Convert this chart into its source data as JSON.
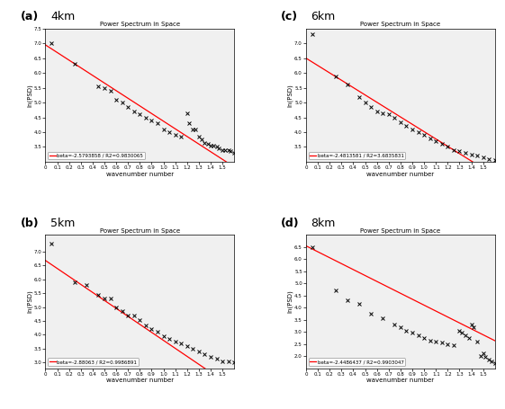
{
  "title": "Power Spectrum in Space",
  "xlabel": "wavenumber number",
  "ylabel": "ln(PSD)",
  "subplots": [
    {
      "label": "(a)",
      "alt": "4km",
      "beta": -2.5793858,
      "r2": 0.9830065,
      "legend_text": "beta=-2.5793858 / R2=0.9830065",
      "ylim": [
        3.0,
        7.5
      ],
      "xlim": [
        0.0,
        1.6
      ],
      "yticks": [
        3.5,
        4.0,
        4.5,
        5.0,
        5.5,
        6.0,
        6.5,
        7.0,
        7.5
      ],
      "xticks": [
        0.0,
        0.1,
        0.2,
        0.3,
        0.4,
        0.5,
        0.6,
        0.7,
        0.8,
        0.9,
        1.0,
        1.1,
        1.2,
        1.3,
        1.4,
        1.5
      ],
      "intercept": 6.95,
      "data_x": [
        0.05,
        0.25,
        0.45,
        0.5,
        0.55,
        0.6,
        0.65,
        0.7,
        0.75,
        0.8,
        0.85,
        0.9,
        0.95,
        1.0,
        1.05,
        1.1,
        1.15,
        1.2,
        1.22,
        1.25,
        1.27,
        1.3,
        1.32,
        1.35,
        1.38,
        1.4,
        1.42,
        1.45,
        1.47,
        1.5,
        1.52,
        1.55,
        1.57,
        1.6
      ],
      "data_y": [
        7.0,
        6.3,
        5.55,
        5.5,
        5.4,
        5.1,
        5.0,
        4.85,
        4.7,
        4.6,
        4.5,
        4.4,
        4.3,
        4.1,
        4.0,
        3.9,
        3.85,
        4.65,
        4.3,
        4.1,
        4.1,
        3.85,
        3.75,
        3.65,
        3.6,
        3.55,
        3.55,
        3.5,
        3.45,
        3.4,
        3.4,
        3.38,
        3.35,
        3.3
      ]
    },
    {
      "label": "(b)",
      "alt": "5km",
      "beta": -2.88063,
      "r2": 0.9986891,
      "legend_text": "beta=-2.88063 / R2=0.9986891",
      "ylim": [
        2.8,
        7.6
      ],
      "xlim": [
        0.0,
        1.6
      ],
      "yticks": [
        3.0,
        3.5,
        4.0,
        4.5,
        5.0,
        5.5,
        6.0,
        6.5,
        7.0
      ],
      "xticks": [
        0.0,
        0.1,
        0.2,
        0.3,
        0.4,
        0.5,
        0.6,
        0.7,
        0.8,
        0.9,
        1.0,
        1.1,
        1.2,
        1.3,
        1.4,
        1.5
      ],
      "intercept": 6.68,
      "data_x": [
        0.05,
        0.25,
        0.35,
        0.45,
        0.5,
        0.55,
        0.6,
        0.65,
        0.7,
        0.75,
        0.8,
        0.85,
        0.9,
        0.95,
        1.0,
        1.05,
        1.1,
        1.15,
        1.2,
        1.25,
        1.3,
        1.35,
        1.4,
        1.45,
        1.5,
        1.55,
        1.6
      ],
      "data_y": [
        7.3,
        5.88,
        5.8,
        5.45,
        5.3,
        5.3,
        5.0,
        4.85,
        4.7,
        4.7,
        4.55,
        4.35,
        4.2,
        4.1,
        3.95,
        3.85,
        3.75,
        3.7,
        3.6,
        3.5,
        3.4,
        3.3,
        3.2,
        3.15,
        3.05,
        3.05,
        3.0
      ]
    },
    {
      "label": "(c)",
      "alt": "6km",
      "beta": -2.4813581,
      "r2": 3.6835831,
      "legend_text": "beta=-2.4813581 / R2=3.6835831",
      "ylim": [
        3.0,
        7.5
      ],
      "xlim": [
        0.0,
        1.6
      ],
      "yticks": [
        3.5,
        4.0,
        4.5,
        5.0,
        5.5,
        6.0,
        6.5,
        7.0
      ],
      "xticks": [
        0.0,
        0.1,
        0.2,
        0.3,
        0.4,
        0.5,
        0.6,
        0.7,
        0.8,
        0.9,
        1.0,
        1.1,
        1.2,
        1.3,
        1.4,
        1.5
      ],
      "intercept": 6.5,
      "data_x": [
        0.05,
        0.25,
        0.35,
        0.45,
        0.5,
        0.55,
        0.6,
        0.65,
        0.7,
        0.75,
        0.8,
        0.85,
        0.9,
        0.95,
        1.0,
        1.05,
        1.1,
        1.15,
        1.2,
        1.25,
        1.3,
        1.35,
        1.4,
        1.45,
        1.5,
        1.55,
        1.6
      ],
      "data_y": [
        7.3,
        5.9,
        5.6,
        5.2,
        5.0,
        4.85,
        4.7,
        4.65,
        4.6,
        4.5,
        4.35,
        4.2,
        4.1,
        4.0,
        3.9,
        3.8,
        3.7,
        3.6,
        3.5,
        3.4,
        3.35,
        3.3,
        3.25,
        3.2,
        3.15,
        3.1,
        3.05
      ]
    },
    {
      "label": "(d)",
      "alt": "8km",
      "beta": -2.4486437,
      "r2": 0.9903047,
      "legend_text": "beta=-2.4486437 / R2=0.9903047",
      "ylim": [
        1.5,
        7.0
      ],
      "xlim": [
        0.0,
        1.6
      ],
      "yticks": [
        2.0,
        2.5,
        3.0,
        3.5,
        4.0,
        4.5,
        5.0,
        5.5,
        6.0,
        6.5
      ],
      "xticks": [
        0.0,
        0.1,
        0.2,
        0.3,
        0.4,
        0.5,
        0.6,
        0.7,
        0.8,
        0.9,
        1.0,
        1.1,
        1.2,
        1.3,
        1.4,
        1.5
      ],
      "intercept": 6.55,
      "data_x": [
        0.05,
        0.25,
        0.35,
        0.45,
        0.55,
        0.65,
        0.75,
        0.8,
        0.85,
        0.9,
        0.95,
        1.0,
        1.05,
        1.1,
        1.15,
        1.2,
        1.25,
        1.3,
        1.32,
        1.35,
        1.38,
        1.4,
        1.42,
        1.45,
        1.48,
        1.5,
        1.52,
        1.55,
        1.57,
        1.6
      ],
      "data_y": [
        6.5,
        4.7,
        4.3,
        4.15,
        3.75,
        3.55,
        3.3,
        3.2,
        3.05,
        2.95,
        2.85,
        2.75,
        2.65,
        2.6,
        2.55,
        2.5,
        2.45,
        3.05,
        2.95,
        2.85,
        2.75,
        3.3,
        3.2,
        2.6,
        2.0,
        2.1,
        1.95,
        1.85,
        1.78,
        1.72
      ]
    }
  ],
  "line_color": "red",
  "marker_color": "black",
  "bg_color": "white",
  "label_fontsize": 9,
  "title_fontsize": 5,
  "tick_fontsize": 4,
  "legend_fontsize": 4,
  "axis_label_fontsize": 5
}
